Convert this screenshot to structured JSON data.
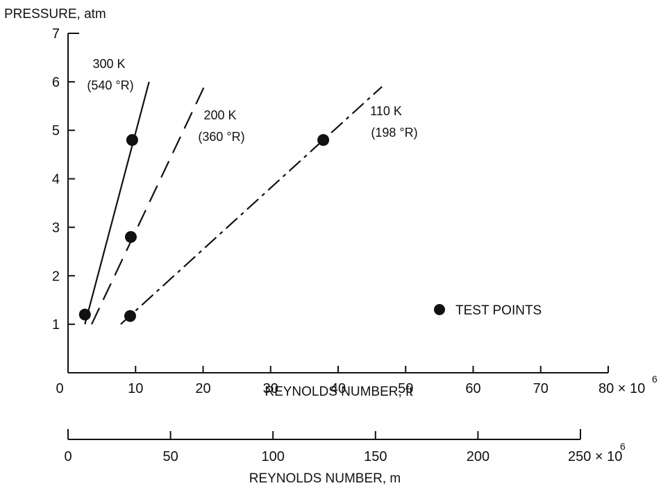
{
  "chart_data": {
    "type": "line",
    "ylabel": "PRESSURE, atm",
    "xlabel": "REYNOLDS NUMBER, ft",
    "xlabel2": "REYNOLDS NUMBER, m",
    "xlim": [
      0,
      80
    ],
    "ylim": [
      0,
      7
    ],
    "xlim2": [
      0,
      250
    ],
    "x_ticks": [
      "0",
      "10",
      "20",
      "30",
      "40",
      "50",
      "60",
      "70"
    ],
    "x_end_label": "80 × 10",
    "x_exponent": "6",
    "y_ticks": [
      "1",
      "2",
      "3",
      "4",
      "5",
      "6",
      "7"
    ],
    "x2_ticks": [
      "0",
      "50",
      "100",
      "150",
      "200"
    ],
    "x2_end_label": "250 × 10",
    "x2_exponent": "6",
    "series": [
      {
        "name_line1": "300 K",
        "name_line2": "(540 °R)",
        "style": "solid",
        "x": [
          2.5,
          12
        ],
        "y": [
          1.0,
          6.0
        ],
        "points": [
          {
            "x": 2.5,
            "y": 1.2
          },
          {
            "x": 9.5,
            "y": 4.8
          }
        ]
      },
      {
        "name_line1": "200 K",
        "name_line2": "(360 °R)",
        "style": "dashed",
        "x": [
          3.5,
          20.5
        ],
        "y": [
          1.0,
          6.0
        ],
        "points": [
          {
            "x": 9.3,
            "y": 2.8
          }
        ]
      },
      {
        "name_line1": "110 K",
        "name_line2": "(198 °R)",
        "style": "dash-dot",
        "x": [
          7.8,
          46.5
        ],
        "y": [
          1.0,
          5.9
        ],
        "points": [
          {
            "x": 9.2,
            "y": 1.17
          },
          {
            "x": 37.8,
            "y": 4.8
          }
        ]
      }
    ],
    "legend": {
      "label": "TEST POINTS",
      "placement": "lower-right"
    }
  }
}
